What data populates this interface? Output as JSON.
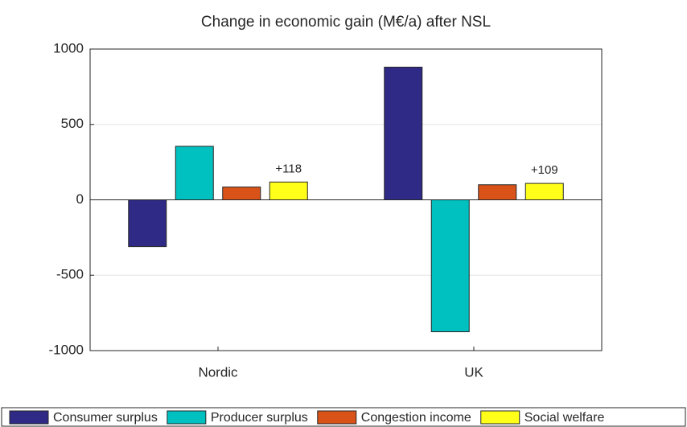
{
  "chart_data": {
    "type": "bar",
    "title": "Change in economic gain (M€/a) after NSL",
    "categories": [
      "Nordic",
      "UK"
    ],
    "series": [
      {
        "name": "Consumer surplus",
        "color": "#2e2a85",
        "values": [
          -310,
          880
        ]
      },
      {
        "name": "Producer surplus",
        "color": "#00c0c0",
        "values": [
          355,
          -875
        ]
      },
      {
        "name": "Congestion income",
        "color": "#d95319",
        "values": [
          85,
          100
        ]
      },
      {
        "name": "Social welfare",
        "color": "#ffff1a",
        "values": [
          118,
          109
        ],
        "value_labels": [
          "+118",
          "+109"
        ]
      }
    ],
    "ylim": [
      -1000,
      1000
    ],
    "yticks": [
      -1000,
      -500,
      0,
      500,
      1000
    ],
    "grid": true
  }
}
